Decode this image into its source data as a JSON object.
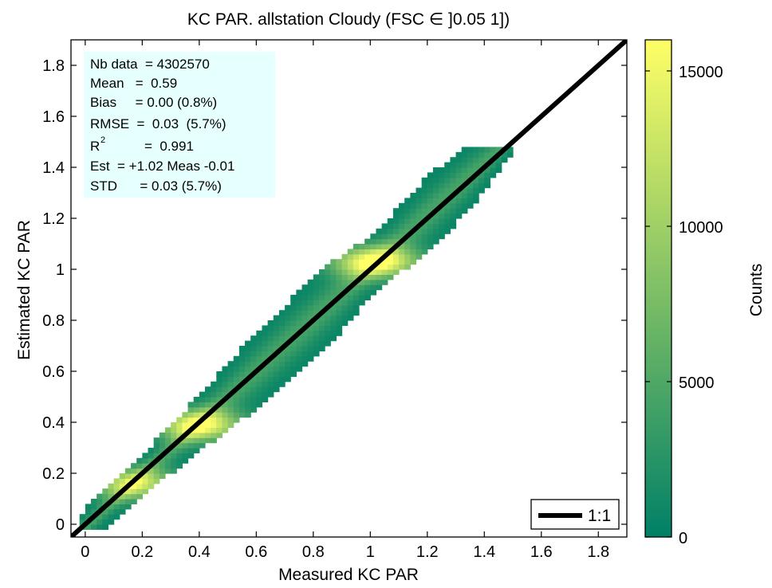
{
  "chart_data": {
    "type": "heatmap",
    "title": "KC PAR. allstation  Cloudy (FSC ∈ ]0.05 1])",
    "xlabel": "Measured KC PAR",
    "ylabel": "Estimated KC PAR",
    "xlim": [
      -0.05,
      1.9
    ],
    "ylim": [
      -0.05,
      1.9
    ],
    "xticks": [
      0,
      0.2,
      0.4,
      0.6,
      0.8,
      1,
      1.2,
      1.4,
      1.6,
      1.8
    ],
    "xtick_labels": [
      "0",
      "0.2",
      "0.4",
      "0.6",
      "0.8",
      "1",
      "1.2",
      "1.4",
      "1.6",
      "1.8"
    ],
    "yticks": [
      0,
      0.2,
      0.4,
      0.6,
      0.8,
      1,
      1.2,
      1.4,
      1.6,
      1.8
    ],
    "ytick_labels": [
      "0",
      "0.2",
      "0.4",
      "0.6",
      "0.8",
      "1",
      "1.2",
      "1.4",
      "1.6",
      "1.8"
    ],
    "grid": false,
    "bin_size": 0.02,
    "density_band": {
      "x_range": [
        -0.02,
        1.48
      ],
      "y_max": 1.48,
      "fit_slope": 1.02,
      "fit_intercept": -0.01,
      "half_width": [
        [
          0.0,
          0.06
        ],
        [
          0.2,
          0.07
        ],
        [
          0.4,
          0.1
        ],
        [
          0.6,
          0.14
        ],
        [
          0.8,
          0.15
        ],
        [
          0.9,
          0.14
        ],
        [
          1.0,
          0.11
        ],
        [
          1.1,
          0.12
        ],
        [
          1.2,
          0.14
        ],
        [
          1.35,
          0.12
        ],
        [
          1.48,
          0.06
        ]
      ],
      "peaks": [
        {
          "x": 0.17,
          "y": 0.16,
          "counts": 12500
        },
        {
          "x": 0.4,
          "y": 0.39,
          "counts": 14500
        },
        {
          "x": 1.02,
          "y": 1.03,
          "counts": 15500
        }
      ],
      "ridge_counts": 4000,
      "edge_counts": 500
    },
    "colorbar": {
      "label": "Counts",
      "range": [
        0,
        16000
      ],
      "ticks": [
        0,
        5000,
        10000,
        15000
      ],
      "tick_labels": [
        "0",
        "5000",
        "10000",
        "15000"
      ],
      "colormap": "summer",
      "color_low": "#008066",
      "color_high": "#ffff66"
    },
    "reference_line": {
      "label": "1:1",
      "slope": 1,
      "intercept": 0,
      "color": "#000000"
    },
    "legend": {
      "position": "bottom-right",
      "entries": [
        "1:1"
      ]
    },
    "stats_box": {
      "background": "#e6ffff",
      "lines": [
        "Nb data  = 4302570",
        "Mean   =  0.59",
        "Bias     = 0.00 (0.8%)",
        "RMSE  =  0.03  (5.7%)",
        "R",
        "Est  = +1.02 Meas -0.01",
        "STD      = 0.03 (5.7%)"
      ],
      "r2_superscript": "2",
      "r2_value": "=  0.991"
    }
  }
}
